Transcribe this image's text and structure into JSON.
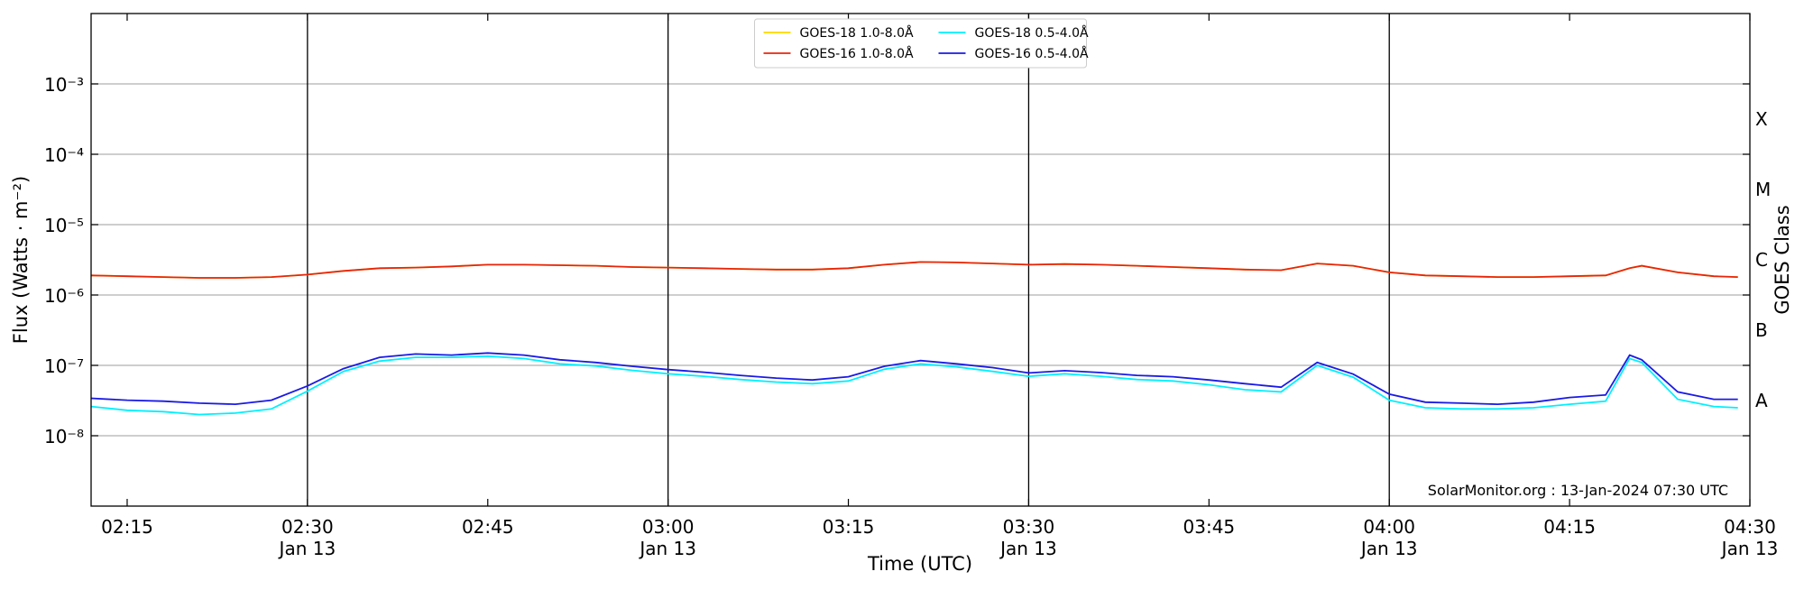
{
  "chart_data": {
    "type": "line",
    "xlabel": "Time (UTC)",
    "ylabel": "Flux (Watts · m⁻²)",
    "y2label": "GOES Class",
    "annotation": "SolarMonitor.org : 13-Jan-2024 07:30 UTC",
    "log_y": true,
    "grid": true,
    "legend": "upper center",
    "xlim": [
      "02:12",
      "04:30"
    ],
    "xticks": [
      "02:15",
      "02:30",
      "02:45",
      "03:00",
      "03:15",
      "03:30",
      "03:45",
      "04:00",
      "04:15",
      "04:30"
    ],
    "xtick_sublabels": [
      null,
      "Jan 13",
      null,
      "Jan 13",
      null,
      "Jan 13",
      null,
      "Jan 13",
      null,
      "Jan 13"
    ],
    "vlines": [
      "02:30",
      "03:00",
      "03:30",
      "04:00"
    ],
    "ylim": [
      1e-09,
      0.01
    ],
    "yticks": [
      {
        "value": 1e-08,
        "label": "10⁻⁸"
      },
      {
        "value": 1e-07,
        "label": "10⁻⁷"
      },
      {
        "value": 1e-06,
        "label": "10⁻⁶"
      },
      {
        "value": 1e-05,
        "label": "10⁻⁵"
      },
      {
        "value": 0.0001,
        "label": "10⁻⁴"
      },
      {
        "value": 0.001,
        "label": "10⁻³"
      }
    ],
    "y2lim": [
      1e-09,
      0.01
    ],
    "y2ticks": [
      {
        "value": 3.162e-08,
        "label": "A"
      },
      {
        "value": 3.162e-07,
        "label": "B"
      },
      {
        "value": 3.162e-06,
        "label": "C"
      },
      {
        "value": 3.162e-05,
        "label": "M"
      },
      {
        "value": 0.0003162,
        "label": "X"
      }
    ],
    "x": [
      "02:12",
      "02:15",
      "02:18",
      "02:21",
      "02:24",
      "02:27",
      "02:30",
      "02:33",
      "02:36",
      "02:39",
      "02:42",
      "02:45",
      "02:48",
      "02:51",
      "02:54",
      "02:57",
      "03:00",
      "03:03",
      "03:06",
      "03:09",
      "03:12",
      "03:15",
      "03:18",
      "03:21",
      "03:24",
      "03:27",
      "03:30",
      "03:33",
      "03:36",
      "03:39",
      "03:42",
      "03:45",
      "03:48",
      "03:51",
      "03:54",
      "03:57",
      "04:00",
      "04:03",
      "04:06",
      "04:09",
      "04:12",
      "04:15",
      "04:18",
      "04:20",
      "04:21",
      "04:24",
      "04:27",
      "04:29"
    ],
    "series": [
      {
        "name": "GOES-18 1.0-8.0Å",
        "color": "#ffd700",
        "values": [
          1.9e-06,
          1.85e-06,
          1.8e-06,
          1.75e-06,
          1.75e-06,
          1.8e-06,
          1.95e-06,
          2.2e-06,
          2.4e-06,
          2.45e-06,
          2.55e-06,
          2.7e-06,
          2.7e-06,
          2.65e-06,
          2.6e-06,
          2.5e-06,
          2.45e-06,
          2.4e-06,
          2.35e-06,
          2.3e-06,
          2.3e-06,
          2.4e-06,
          2.7e-06,
          2.95e-06,
          2.9e-06,
          2.8e-06,
          2.7e-06,
          2.75e-06,
          2.7e-06,
          2.6e-06,
          2.5e-06,
          2.4e-06,
          2.3e-06,
          2.25e-06,
          2.8e-06,
          2.6e-06,
          2.1e-06,
          1.9e-06,
          1.85e-06,
          1.8e-06,
          1.8e-06,
          1.85e-06,
          1.9e-06,
          2.4e-06,
          2.6e-06,
          2.1e-06,
          1.85e-06,
          1.8e-06
        ]
      },
      {
        "name": "GOES-16 1.0-8.0Å",
        "color": "#e8250c",
        "values": [
          1.9e-06,
          1.85e-06,
          1.8e-06,
          1.75e-06,
          1.75e-06,
          1.8e-06,
          1.95e-06,
          2.2e-06,
          2.4e-06,
          2.45e-06,
          2.55e-06,
          2.7e-06,
          2.7e-06,
          2.65e-06,
          2.6e-06,
          2.5e-06,
          2.45e-06,
          2.4e-06,
          2.35e-06,
          2.3e-06,
          2.3e-06,
          2.4e-06,
          2.7e-06,
          2.95e-06,
          2.9e-06,
          2.8e-06,
          2.7e-06,
          2.75e-06,
          2.7e-06,
          2.6e-06,
          2.5e-06,
          2.4e-06,
          2.3e-06,
          2.25e-06,
          2.8e-06,
          2.6e-06,
          2.1e-06,
          1.9e-06,
          1.85e-06,
          1.8e-06,
          1.8e-06,
          1.85e-06,
          1.9e-06,
          2.4e-06,
          2.6e-06,
          2.1e-06,
          1.85e-06,
          1.8e-06
        ]
      },
      {
        "name": "GOES-18 0.5-4.0Å",
        "color": "#00f0ff",
        "values": [
          2.6e-08,
          2.3e-08,
          2.2e-08,
          2e-08,
          2.1e-08,
          2.4e-08,
          4.3e-08,
          8.2e-08,
          1.15e-07,
          1.3e-07,
          1.3e-07,
          1.35e-07,
          1.25e-07,
          1.05e-07,
          9.8e-08,
          8.5e-08,
          7.6e-08,
          7e-08,
          6.3e-08,
          5.8e-08,
          5.5e-08,
          6e-08,
          8.8e-08,
          1.05e-07,
          9.5e-08,
          8.2e-08,
          7e-08,
          7.6e-08,
          7e-08,
          6.3e-08,
          6e-08,
          5.3e-08,
          4.5e-08,
          4.2e-08,
          1e-07,
          6.8e-08,
          3.2e-08,
          2.5e-08,
          2.4e-08,
          2.4e-08,
          2.5e-08,
          2.8e-08,
          3.1e-08,
          1.25e-07,
          1.1e-07,
          3.3e-08,
          2.6e-08,
          2.5e-08
        ]
      },
      {
        "name": "GOES-16 0.5-4.0Å",
        "color": "#1a1ae6",
        "values": [
          3.4e-08,
          3.2e-08,
          3.1e-08,
          2.9e-08,
          2.8e-08,
          3.2e-08,
          5.1e-08,
          9e-08,
          1.3e-07,
          1.45e-07,
          1.4e-07,
          1.5e-07,
          1.4e-07,
          1.2e-07,
          1.1e-07,
          9.7e-08,
          8.7e-08,
          8e-08,
          7.2e-08,
          6.6e-08,
          6.2e-08,
          6.9e-08,
          9.7e-08,
          1.17e-07,
          1.05e-07,
          9.3e-08,
          7.8e-08,
          8.4e-08,
          7.9e-08,
          7.2e-08,
          6.9e-08,
          6.2e-08,
          5.5e-08,
          4.9e-08,
          1.1e-07,
          7.5e-08,
          3.9e-08,
          3e-08,
          2.9e-08,
          2.8e-08,
          3e-08,
          3.5e-08,
          3.8e-08,
          1.4e-07,
          1.2e-07,
          4.2e-08,
          3.3e-08,
          3.3e-08
        ]
      }
    ]
  }
}
